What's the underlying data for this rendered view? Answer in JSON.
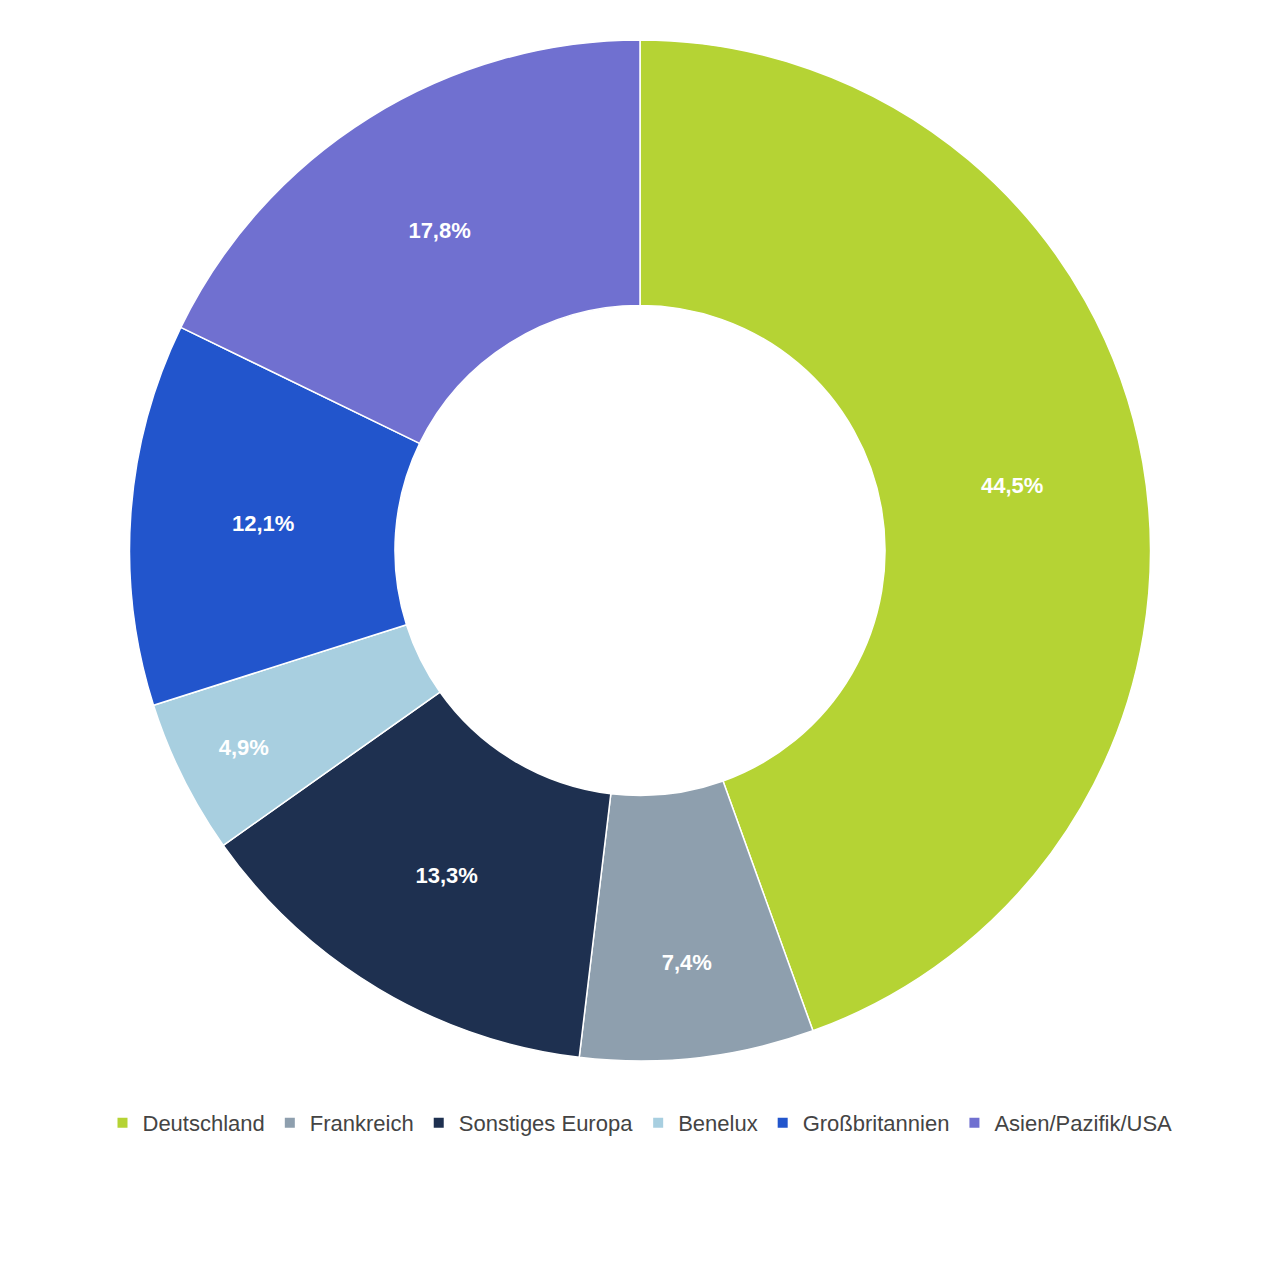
{
  "chart_data": {
    "type": "pie",
    "categories": [
      "Deutschland",
      "Frankreich",
      "Sonstiges Europa",
      "Benelux",
      "Großbritannien",
      "Asien/Pazifik/USA"
    ],
    "values": [
      44.5,
      7.4,
      13.3,
      4.9,
      12.1,
      17.8
    ],
    "value_labels": [
      "44,5%",
      "7,4%",
      "13,3%",
      "4,9%",
      "12,1%",
      "17,8%"
    ],
    "colors": [
      "#b5d334",
      "#8e9fae",
      "#1e3050",
      "#a8cfe0",
      "#2255cc",
      "#7070d0"
    ],
    "data_labels": true,
    "legend": "bottom"
  }
}
